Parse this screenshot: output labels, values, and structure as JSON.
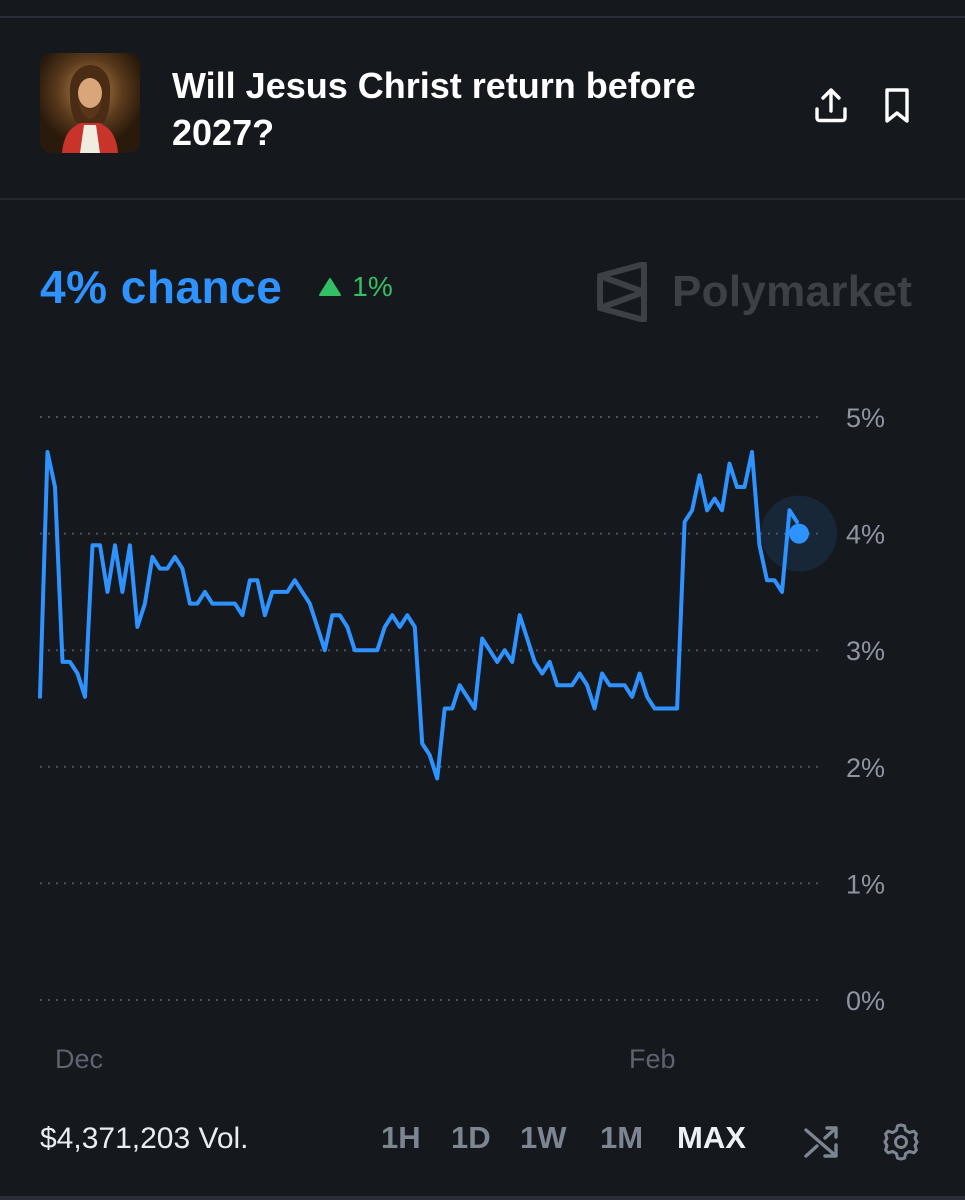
{
  "market": {
    "title": "Will Jesus Christ return before 2027?",
    "chance_label": "4% chance",
    "chance_value": 4,
    "change_label": "1%",
    "change_direction": "up"
  },
  "brand": {
    "name": "Polymarket",
    "logo_icon": "polymarket-logo-icon"
  },
  "colors": {
    "accent": "#2e92ff",
    "positive": "#33c065",
    "background": "#15181d",
    "muted": "#7d8592"
  },
  "footer": {
    "volume": "$4,371,203 Vol.",
    "ranges": [
      "1H",
      "1D",
      "1W",
      "1M",
      "MAX"
    ],
    "selected_range": "MAX"
  },
  "chart_data": {
    "type": "line",
    "ylim": [
      0,
      5
    ],
    "yticks": [
      "5%",
      "4%",
      "3%",
      "2%",
      "1%",
      "0%"
    ],
    "xticks": [
      "Dec",
      "Feb"
    ],
    "grid": true,
    "series": [
      {
        "values": [
          2.6,
          4.7,
          4.4,
          2.9,
          2.9,
          2.8,
          2.6,
          3.9,
          3.9,
          3.5,
          3.9,
          3.5,
          3.9,
          3.2,
          3.4,
          3.8,
          3.7,
          3.7,
          3.8,
          3.7,
          3.4,
          3.4,
          3.5,
          3.4,
          3.4,
          3.4,
          3.4,
          3.3,
          3.6,
          3.6,
          3.3,
          3.5,
          3.5,
          3.5,
          3.6,
          3.5,
          3.4,
          3.2,
          3.0,
          3.3,
          3.3,
          3.2,
          3.0,
          3.0,
          3.0,
          3.0,
          3.2,
          3.3,
          3.2,
          3.3,
          3.2,
          2.2,
          2.1,
          1.9,
          2.5,
          2.5,
          2.7,
          2.6,
          2.5,
          3.1,
          3.0,
          2.9,
          3.0,
          2.9,
          3.3,
          3.1,
          2.9,
          2.8,
          2.9,
          2.7,
          2.7,
          2.7,
          2.8,
          2.7,
          2.5,
          2.8,
          2.7,
          2.7,
          2.7,
          2.6,
          2.8,
          2.6,
          2.5,
          2.5,
          2.5,
          2.5,
          4.1,
          4.2,
          4.5,
          4.2,
          4.3,
          4.2,
          4.6,
          4.4,
          4.4,
          4.7,
          3.9,
          3.6,
          3.6,
          3.5,
          4.2,
          4.1
        ]
      }
    ],
    "current_value": 4.0
  }
}
